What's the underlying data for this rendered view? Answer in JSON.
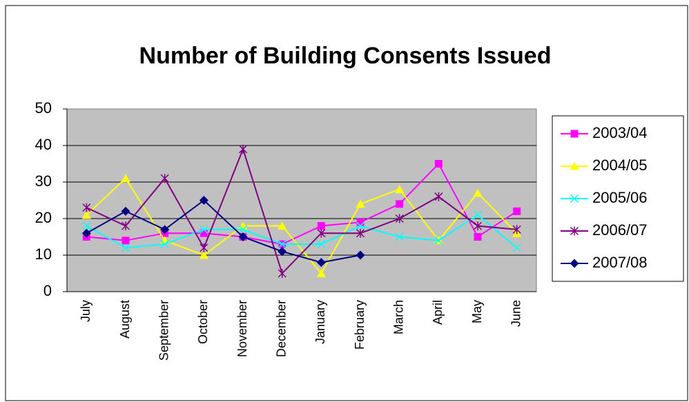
{
  "chart_data": {
    "type": "line",
    "title": "Number of Building Consents Issued",
    "categories": [
      "July",
      "August",
      "September",
      "October",
      "November",
      "December",
      "January",
      "February",
      "March",
      "April",
      "May",
      "June"
    ],
    "series": [
      {
        "name": "2003/04",
        "color": "#ff00ff",
        "marker": "square",
        "values": [
          15,
          14,
          16,
          16,
          15,
          13,
          18,
          19,
          24,
          35,
          15,
          22
        ]
      },
      {
        "name": "2004/05",
        "color": "#ffff00",
        "marker": "triangle",
        "values": [
          21,
          31,
          14,
          10,
          18,
          18,
          5,
          24,
          28,
          14,
          27,
          16
        ]
      },
      {
        "name": "2005/06",
        "color": "#00ffff",
        "marker": "x",
        "values": [
          18,
          12,
          13,
          17,
          17,
          13,
          13,
          18,
          15,
          14,
          21,
          12
        ]
      },
      {
        "name": "2006/07",
        "color": "#800080",
        "marker": "star",
        "values": [
          23,
          18,
          31,
          12,
          39,
          5,
          16,
          16,
          20,
          26,
          18,
          17
        ]
      },
      {
        "name": "2007/08",
        "color": "#000080",
        "marker": "diamond",
        "values": [
          16,
          22,
          17,
          25,
          15,
          11,
          8,
          10,
          null,
          null,
          null,
          null
        ]
      }
    ],
    "ylim": [
      0,
      50
    ],
    "yticks": [
      0,
      10,
      20,
      30,
      40,
      50
    ],
    "grid": true,
    "legend": "right"
  }
}
